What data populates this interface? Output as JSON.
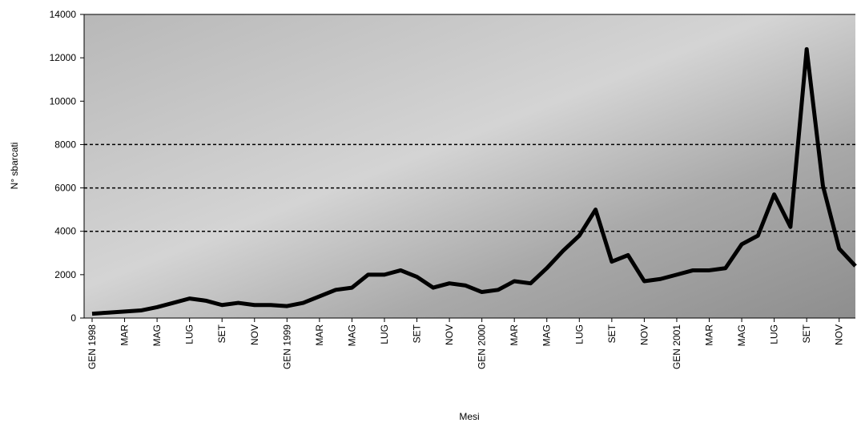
{
  "chart_data": {
    "type": "line",
    "y_label": "N° sbarcati",
    "x_label": "Mesi",
    "categories": [
      "GEN 1998",
      null,
      "MAR",
      null,
      "MAG",
      null,
      "LUG",
      null,
      "SET",
      null,
      "NOV",
      null,
      "GEN 1999",
      null,
      "MAR",
      null,
      "MAG",
      null,
      "LUG",
      null,
      "SET",
      null,
      "NOV",
      null,
      "GEN 2000",
      null,
      "MAR",
      null,
      "MAG",
      null,
      "LUG",
      null,
      "SET",
      null,
      "NOV",
      null,
      "GEN 2001",
      null,
      "MAR",
      null,
      "MAG",
      null,
      "LUG",
      null,
      "SET",
      null,
      "NOV",
      null
    ],
    "series": [
      {
        "name": "N° sbarcati",
        "color": "#000000",
        "values": [
          200,
          250,
          300,
          350,
          500,
          700,
          900,
          800,
          600,
          700,
          600,
          600,
          550,
          700,
          1000,
          1300,
          1400,
          2000,
          2000,
          2200,
          1900,
          1400,
          1600,
          1500,
          1200,
          1300,
          1700,
          1600,
          2300,
          3100,
          3800,
          5000,
          2600,
          2900,
          1700,
          1800,
          2000,
          2200,
          2200,
          2300,
          3400,
          3800,
          5700,
          4200,
          12400,
          6100,
          3200,
          2400
        ]
      }
    ],
    "ylim": [
      0,
      14000
    ],
    "yticks": [
      0,
      2000,
      4000,
      6000,
      8000,
      10000,
      12000,
      14000
    ],
    "grid_values": [
      4000,
      6000,
      8000
    ]
  }
}
